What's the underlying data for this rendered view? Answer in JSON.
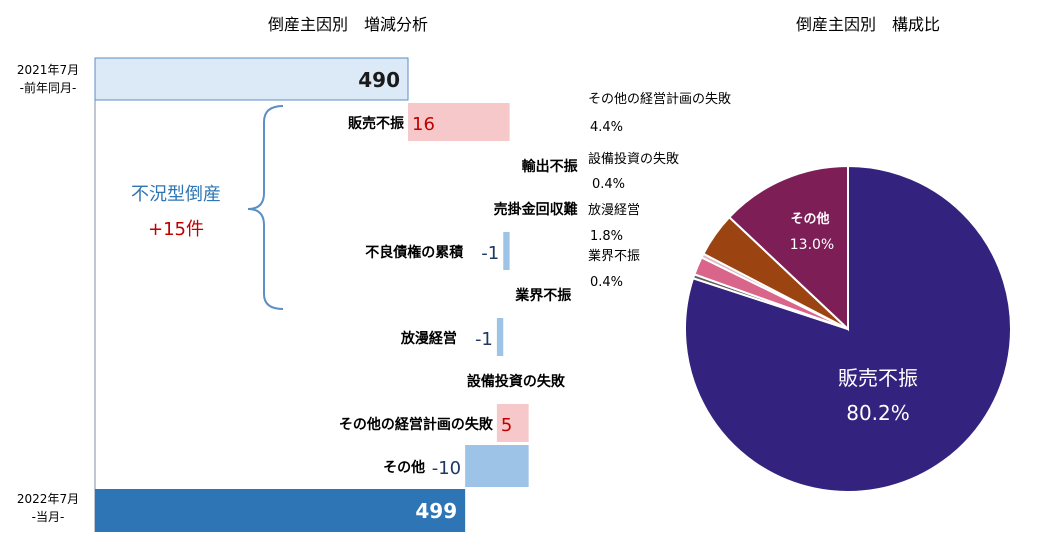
{
  "chart_data": [
    {
      "type": "bar",
      "subtype": "waterfall",
      "title": "倒産主因別　増減分析",
      "ylim": [
        0,
        500
      ],
      "start": {
        "label_line1": "2021年7月",
        "label_line2": "-前年同月-",
        "value": 490,
        "value_text": "490"
      },
      "end": {
        "label_line1": "2022年7月",
        "label_line2": "-当月-",
        "value": 499,
        "value_text": "499"
      },
      "categories": [
        "販売不振",
        "輸出不振",
        "売掛金回収難",
        "不良債権の累積",
        "業界不振",
        "放漫経営",
        "設備投資の失敗",
        "その他の経営計画の失敗",
        "その他"
      ],
      "values": [
        16,
        0,
        0,
        -1,
        0,
        -1,
        0,
        5,
        -10
      ],
      "value_labels": [
        "16",
        "",
        "",
        "-1",
        "",
        "-1",
        "",
        "5",
        "-10"
      ],
      "group": {
        "label": "不況型倒産",
        "sum_label": "+15件",
        "from_category": "販売不振",
        "to_category": "業界不振"
      },
      "colors": {
        "start": "#dce9f6",
        "end": "#2e75b6",
        "increase": "#f6c8ca",
        "decrease": "#9dc3e6",
        "increase_text": "#c00000",
        "decrease_text": "#1f3864",
        "group_brace": "#5b8fc6",
        "group_label": "#2e75b6"
      }
    },
    {
      "type": "pie",
      "title": "倒産主因別　構成比",
      "start_angle_deg": 0,
      "direction": "clockwise",
      "slices": [
        {
          "name": "販売不振",
          "value": 80.2,
          "value_text": "80.2%",
          "color": "#33237e",
          "label_inside": true,
          "label_color": "#ffffff"
        },
        {
          "name": "業界不振",
          "value": 0.4,
          "value_text": "0.4%",
          "color": "#5e5e5e",
          "label_inside": false
        },
        {
          "name": "放漫経営",
          "value": 1.8,
          "value_text": "1.8%",
          "color": "#d9658a",
          "label_inside": false
        },
        {
          "name": "設備投資の失敗",
          "value": 0.4,
          "value_text": "0.4%",
          "color": "#d8b9c3",
          "label_inside": false
        },
        {
          "name": "その他の経営計画の失敗",
          "value": 4.4,
          "value_text": "4.4%",
          "color": "#9c4312",
          "label_inside": false
        },
        {
          "name": "その他",
          "value": 13.0,
          "value_text": "13.0%",
          "color": "#7d1e57",
          "label_inside": true,
          "label_color": "#ffffff"
        }
      ]
    }
  ]
}
